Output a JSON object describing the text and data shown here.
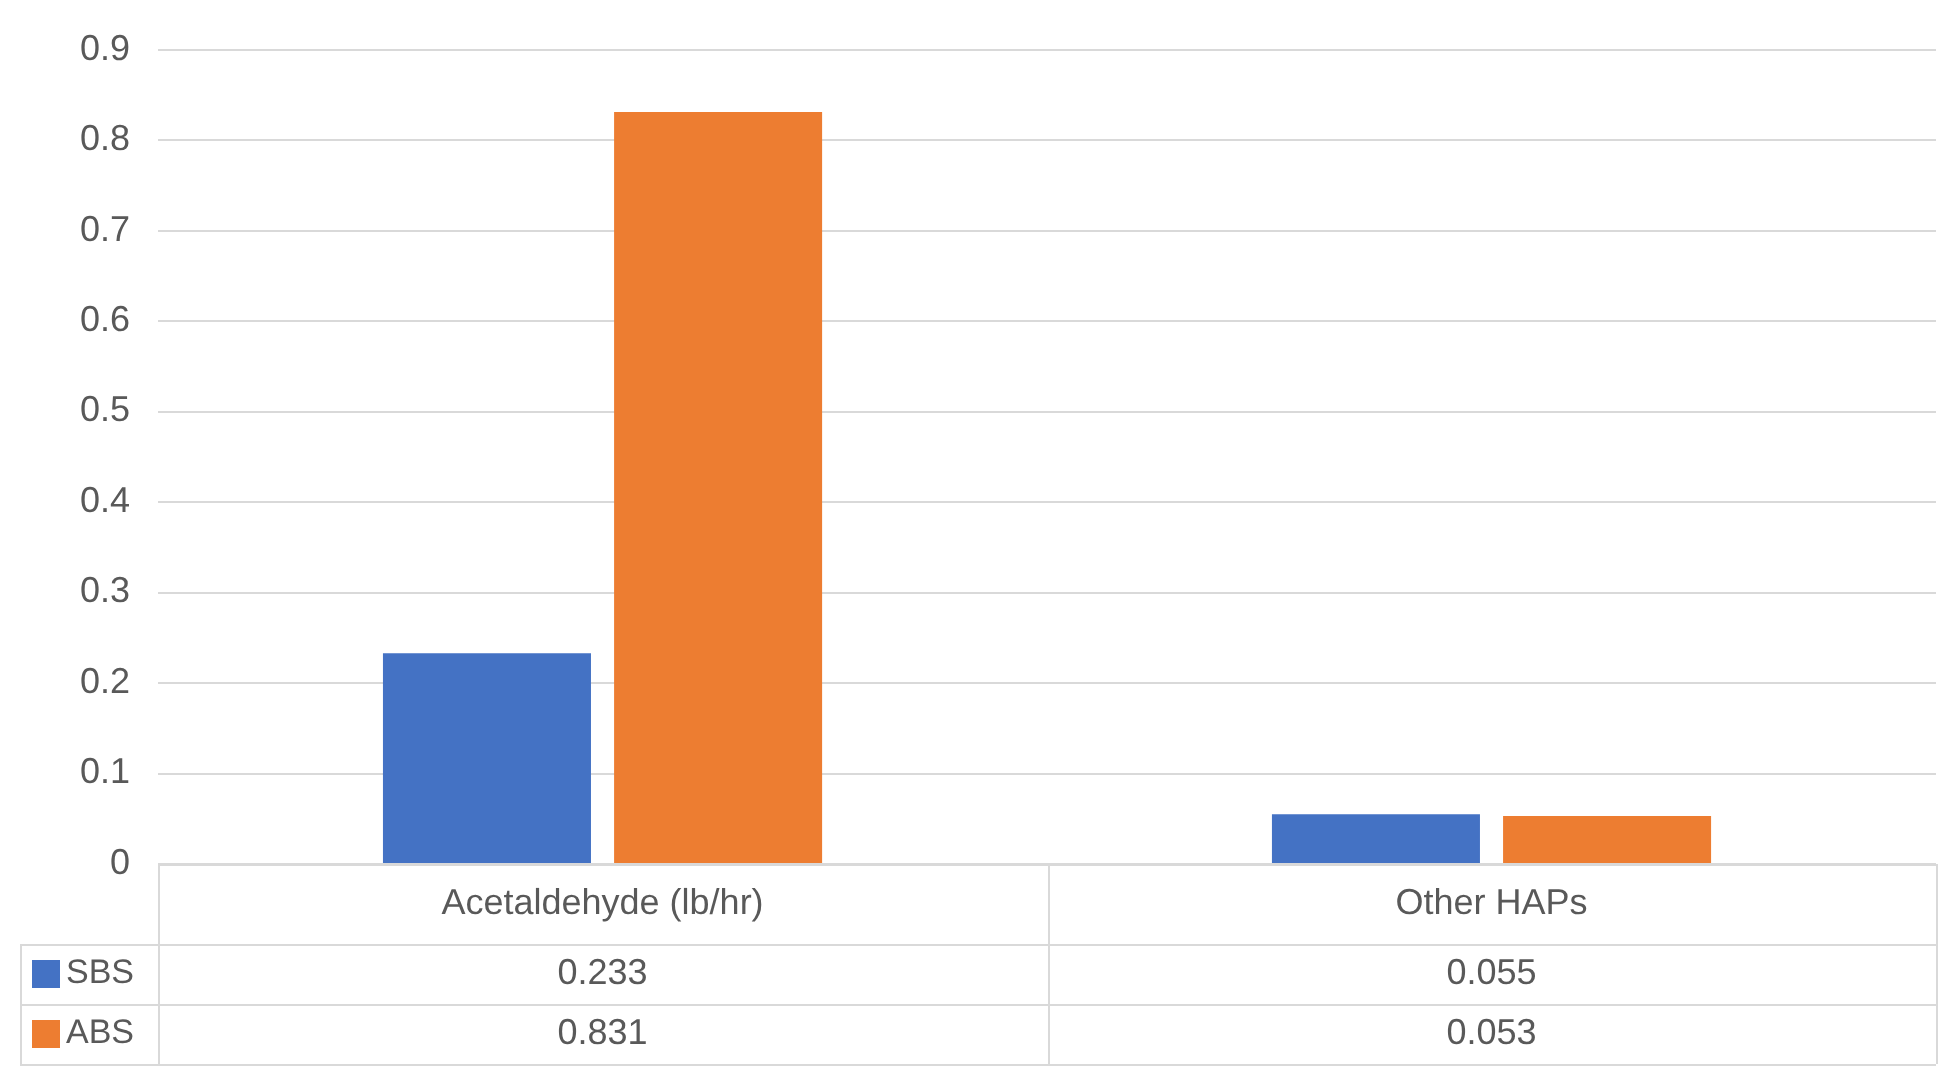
{
  "chart_data": {
    "type": "bar",
    "categories": [
      "Acetaldehyde (lb/hr)",
      "Other HAPs"
    ],
    "series": [
      {
        "name": "SBS",
        "color": "#4472c4",
        "values": [
          0.233,
          0.055
        ]
      },
      {
        "name": "ABS",
        "color": "#ed7d31",
        "values": [
          0.831,
          0.053
        ]
      }
    ],
    "ylim": [
      0,
      0.9
    ],
    "yticks": [
      0,
      0.1,
      0.2,
      0.3,
      0.4,
      0.5,
      0.6,
      0.7,
      0.8,
      0.9
    ],
    "grid": "y",
    "data_labels": true,
    "legend": "bottom"
  }
}
